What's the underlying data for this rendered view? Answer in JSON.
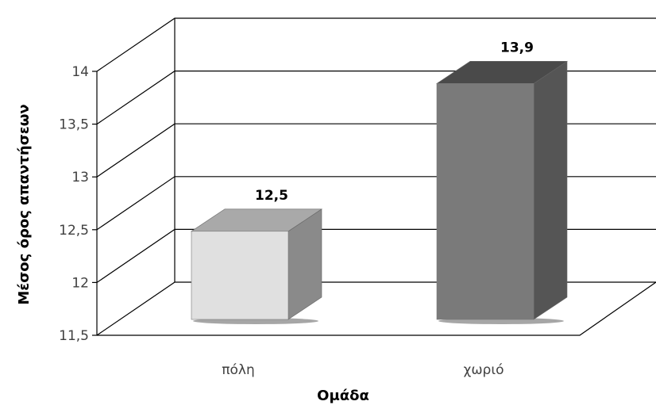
{
  "chart_data": {
    "type": "bar",
    "style": "3d-column",
    "categories": [
      "πόλη",
      "χωριό"
    ],
    "values": [
      12.5,
      13.9
    ],
    "value_labels": [
      "12,5",
      "13,9"
    ],
    "xlabel": "Ομάδα",
    "ylabel": "Μέσος όρος απαντήσεων",
    "ylim": [
      11.5,
      14.0
    ],
    "yticks": [
      11.5,
      12,
      12.5,
      13,
      13.5,
      14
    ],
    "ytick_labels": [
      "11,5",
      "12",
      "12,5",
      "13",
      "13,5",
      "14"
    ],
    "grid": true,
    "legend": "none",
    "colors": {
      "bar_1_front": "#e0e0e0",
      "bar_1_top": "#a9a9a9",
      "bar_1_side": "#8a8a8a",
      "bar_2_front": "#7a7a7a",
      "bar_2_top": "#4a4a4a",
      "bar_2_side": "#555555",
      "grid": "#000000"
    }
  }
}
